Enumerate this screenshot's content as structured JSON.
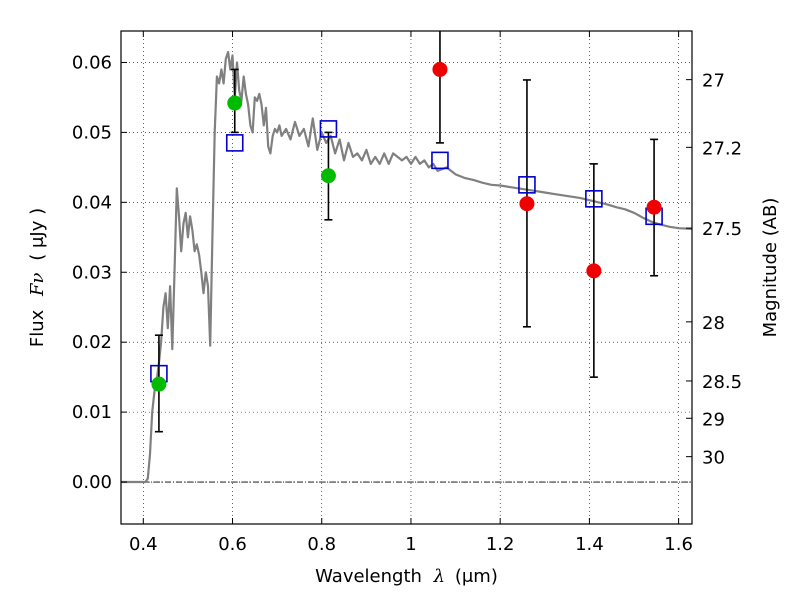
{
  "chart_data": {
    "type": "scatter",
    "xlabel_text": "Wavelength",
    "xlabel_symbol": "λ",
    "xlabel_unit": "(μm)",
    "ylabel_text": "Flux",
    "ylabel_symbol": "Fν",
    "ylabel_unit": "( μJy )",
    "y2label": "Magnitude (AB)",
    "xlim": [
      0.35,
      1.63
    ],
    "ylim": [
      -0.006,
      0.0645
    ],
    "grid": true,
    "x_ticks": [
      {
        "v": 0.4,
        "label": "0.4"
      },
      {
        "v": 0.6,
        "label": "0.6"
      },
      {
        "v": 0.8,
        "label": "0.8"
      },
      {
        "v": 1.0,
        "label": "1"
      },
      {
        "v": 1.2,
        "label": "1.2"
      },
      {
        "v": 1.4,
        "label": "1.4"
      },
      {
        "v": 1.6,
        "label": "1.6"
      }
    ],
    "y_ticks": [
      {
        "v": 0.0,
        "label": "0.00"
      },
      {
        "v": 0.01,
        "label": "0.01"
      },
      {
        "v": 0.02,
        "label": "0.02"
      },
      {
        "v": 0.03,
        "label": "0.03"
      },
      {
        "v": 0.04,
        "label": "0.04"
      },
      {
        "v": 0.05,
        "label": "0.05"
      },
      {
        "v": 0.06,
        "label": "0.06"
      }
    ],
    "y2_ticks": [
      {
        "mag": 27.0,
        "label": "27"
      },
      {
        "mag": 27.2,
        "label": "27.2"
      },
      {
        "mag": 27.5,
        "label": "27.5"
      },
      {
        "mag": 28.0,
        "label": "28"
      },
      {
        "mag": 28.5,
        "label": "28.5"
      },
      {
        "mag": 29.0,
        "label": "29"
      },
      {
        "mag": 30.0,
        "label": "30"
      }
    ],
    "model_spectrum": {
      "color": "#808080",
      "points": [
        [
          0.35,
          0.0
        ],
        [
          0.405,
          0.0
        ],
        [
          0.41,
          0.0005
        ],
        [
          0.415,
          0.004
        ],
        [
          0.42,
          0.01
        ],
        [
          0.425,
          0.013
        ],
        [
          0.43,
          0.0145
        ],
        [
          0.435,
          0.017
        ],
        [
          0.44,
          0.02
        ],
        [
          0.445,
          0.025
        ],
        [
          0.45,
          0.027
        ],
        [
          0.455,
          0.022
        ],
        [
          0.46,
          0.028
        ],
        [
          0.465,
          0.019
        ],
        [
          0.47,
          0.03
        ],
        [
          0.475,
          0.042
        ],
        [
          0.48,
          0.038
        ],
        [
          0.485,
          0.033
        ],
        [
          0.49,
          0.037
        ],
        [
          0.495,
          0.0385
        ],
        [
          0.5,
          0.035
        ],
        [
          0.505,
          0.038
        ],
        [
          0.51,
          0.036
        ],
        [
          0.515,
          0.033
        ],
        [
          0.52,
          0.034
        ],
        [
          0.525,
          0.0325
        ],
        [
          0.53,
          0.03
        ],
        [
          0.535,
          0.027
        ],
        [
          0.54,
          0.03
        ],
        [
          0.545,
          0.028
        ],
        [
          0.55,
          0.0195
        ],
        [
          0.555,
          0.035
        ],
        [
          0.56,
          0.05
        ],
        [
          0.565,
          0.058
        ],
        [
          0.57,
          0.057
        ],
        [
          0.575,
          0.059
        ],
        [
          0.58,
          0.057
        ],
        [
          0.585,
          0.0605
        ],
        [
          0.59,
          0.0615
        ],
        [
          0.595,
          0.059
        ],
        [
          0.6,
          0.061
        ],
        [
          0.605,
          0.055
        ],
        [
          0.61,
          0.06
        ],
        [
          0.615,
          0.056
        ],
        [
          0.62,
          0.0545
        ],
        [
          0.625,
          0.058
        ],
        [
          0.63,
          0.0555
        ],
        [
          0.635,
          0.054
        ],
        [
          0.64,
          0.051
        ],
        [
          0.645,
          0.05
        ],
        [
          0.65,
          0.055
        ],
        [
          0.655,
          0.0545
        ],
        [
          0.66,
          0.0555
        ],
        [
          0.665,
          0.054
        ],
        [
          0.67,
          0.051
        ],
        [
          0.675,
          0.0535
        ],
        [
          0.68,
          0.048
        ],
        [
          0.685,
          0.047
        ],
        [
          0.69,
          0.0495
        ],
        [
          0.695,
          0.0505
        ],
        [
          0.7,
          0.05
        ],
        [
          0.705,
          0.051
        ],
        [
          0.71,
          0.0495
        ],
        [
          0.72,
          0.0505
        ],
        [
          0.73,
          0.049
        ],
        [
          0.74,
          0.0515
        ],
        [
          0.75,
          0.0495
        ],
        [
          0.76,
          0.0505
        ],
        [
          0.77,
          0.048
        ],
        [
          0.78,
          0.052
        ],
        [
          0.79,
          0.0475
        ],
        [
          0.8,
          0.05
        ],
        [
          0.81,
          0.0485
        ],
        [
          0.82,
          0.0495
        ],
        [
          0.83,
          0.047
        ],
        [
          0.84,
          0.049
        ],
        [
          0.85,
          0.046
        ],
        [
          0.86,
          0.0485
        ],
        [
          0.87,
          0.0465
        ],
        [
          0.88,
          0.047
        ],
        [
          0.89,
          0.046
        ],
        [
          0.9,
          0.0475
        ],
        [
          0.91,
          0.0455
        ],
        [
          0.92,
          0.0465
        ],
        [
          0.93,
          0.0455
        ],
        [
          0.94,
          0.047
        ],
        [
          0.95,
          0.0455
        ],
        [
          0.96,
          0.047
        ],
        [
          0.97,
          0.0465
        ],
        [
          0.98,
          0.046
        ],
        [
          0.99,
          0.0465
        ],
        [
          1.0,
          0.0455
        ],
        [
          1.01,
          0.0465
        ],
        [
          1.02,
          0.0455
        ],
        [
          1.03,
          0.046
        ],
        [
          1.04,
          0.045
        ],
        [
          1.05,
          0.0455
        ],
        [
          1.06,
          0.0445
        ],
        [
          1.08,
          0.045
        ],
        [
          1.1,
          0.044
        ],
        [
          1.12,
          0.0435
        ],
        [
          1.14,
          0.0432
        ],
        [
          1.16,
          0.0428
        ],
        [
          1.18,
          0.0425
        ],
        [
          1.2,
          0.0424
        ],
        [
          1.22,
          0.0422
        ],
        [
          1.24,
          0.042
        ],
        [
          1.26,
          0.0418
        ],
        [
          1.28,
          0.0416
        ],
        [
          1.3,
          0.0414
        ],
        [
          1.32,
          0.0412
        ],
        [
          1.34,
          0.041
        ],
        [
          1.36,
          0.0408
        ],
        [
          1.38,
          0.0406
        ],
        [
          1.4,
          0.0403
        ],
        [
          1.42,
          0.04
        ],
        [
          1.44,
          0.0397
        ],
        [
          1.46,
          0.0393
        ],
        [
          1.48,
          0.039
        ],
        [
          1.5,
          0.0385
        ],
        [
          1.52,
          0.0378
        ],
        [
          1.54,
          0.0372
        ],
        [
          1.56,
          0.0368
        ],
        [
          1.58,
          0.0365
        ],
        [
          1.6,
          0.0363
        ],
        [
          1.63,
          0.0362
        ]
      ]
    },
    "model_photometry": {
      "marker": "open-square",
      "color": "#0000cc",
      "points": [
        {
          "x": 0.435,
          "y": 0.0155
        },
        {
          "x": 0.605,
          "y": 0.0485
        },
        {
          "x": 0.815,
          "y": 0.0505
        },
        {
          "x": 1.065,
          "y": 0.046
        },
        {
          "x": 1.26,
          "y": 0.0425
        },
        {
          "x": 1.41,
          "y": 0.0405
        },
        {
          "x": 1.545,
          "y": 0.038
        }
      ]
    },
    "observed_green": {
      "marker": "filled-circle",
      "color": "#00bb00",
      "points": [
        {
          "x": 0.435,
          "y": 0.014,
          "err_low": 0.0072,
          "err_high": 0.021
        },
        {
          "x": 0.605,
          "y": 0.0542,
          "err_low": 0.05,
          "err_high": 0.059
        },
        {
          "x": 0.815,
          "y": 0.0438,
          "err_low": 0.0375,
          "err_high": 0.05
        }
      ]
    },
    "observed_red": {
      "marker": "filled-circle",
      "color": "#ee0000",
      "points": [
        {
          "x": 1.065,
          "y": 0.059,
          "err_low": 0.0485,
          "err_high": 0.065
        },
        {
          "x": 1.26,
          "y": 0.0398,
          "err_low": 0.0222,
          "err_high": 0.0575
        },
        {
          "x": 1.41,
          "y": 0.0302,
          "err_low": 0.015,
          "err_high": 0.0455
        },
        {
          "x": 1.545,
          "y": 0.0393,
          "err_low": 0.0295,
          "err_high": 0.049
        }
      ]
    }
  }
}
